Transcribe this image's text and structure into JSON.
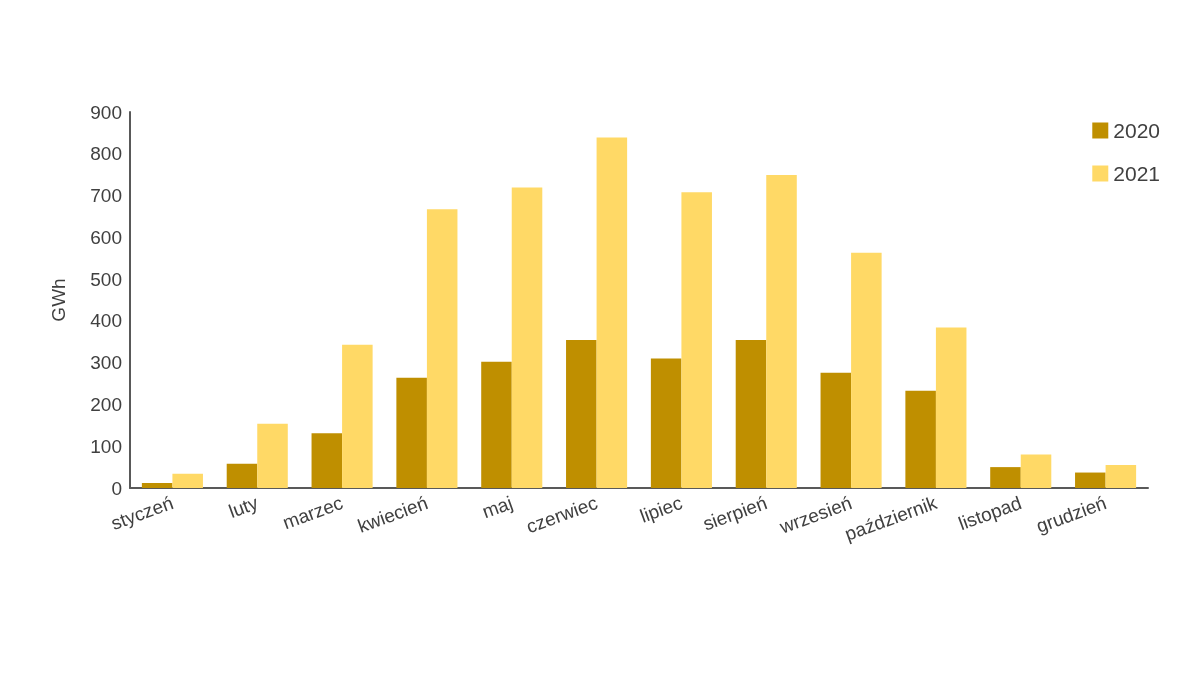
{
  "chart_data": {
    "type": "bar",
    "ylabel": "GWh",
    "categories": [
      "styczeń",
      "luty",
      "marzec",
      "kwiecień",
      "maj",
      "czerwiec",
      "lipiec",
      "sierpień",
      "wrzesień",
      "październik",
      "listopad",
      "grudzień"
    ],
    "series": [
      {
        "name": "2020",
        "color": "#bf8f00",
        "values": [
          12,
          58,
          131,
          264,
          302,
          354,
          310,
          354,
          276,
          233,
          50,
          37
        ]
      },
      {
        "name": "2021",
        "color": "#ffd966",
        "values": [
          34,
          154,
          343,
          667,
          719,
          839,
          708,
          749,
          563,
          384,
          80,
          55
        ]
      }
    ],
    "ylim": [
      0,
      900
    ],
    "yticks": [
      0,
      100,
      200,
      300,
      400,
      500,
      600,
      700,
      800,
      900
    ],
    "grid": false,
    "legend": "top right"
  }
}
